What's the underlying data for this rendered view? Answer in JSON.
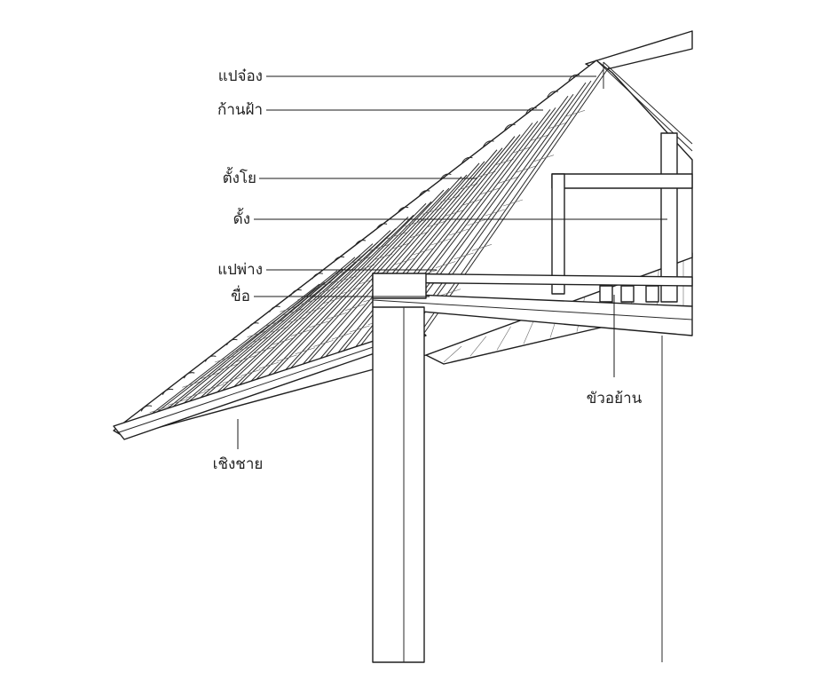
{
  "labels": {
    "ridge_purlin": "แปจ๋อง",
    "gable_stick": "ก้านฝ้า",
    "rafter_post": "ตั้งโย",
    "king_post": "ดั้ง",
    "wall_plate": "แปพ่าง",
    "tie_beam": "ขื่อ",
    "joist_stub": "ขัวอย้าน",
    "eave_board": "เชิงชาย"
  },
  "colors": {
    "line": "#2a2a2a",
    "background": "#ffffff"
  }
}
